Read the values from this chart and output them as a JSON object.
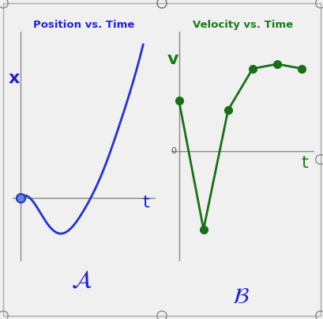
{
  "fig_width": 4.1,
  "fig_height": 4.03,
  "dpi": 100,
  "background_color": "#f0f0f0",
  "outer_border_color": "#aaaaaa",
  "grid_color": "#c8c8d8",
  "left_title": "Position vs. Time",
  "right_title": "Velocity vs. Time",
  "left_title_color": "#2222cc",
  "right_title_color": "#1a7a1a",
  "left_xlabel": "t",
  "left_ylabel": "x",
  "right_xlabel": "t",
  "right_ylabel": "v",
  "axis_label_color_left": "#2222cc",
  "axis_label_color_right": "#1a7a1a",
  "left_curve_color": "#2233cc",
  "right_line_color": "#1a6e1a",
  "label_A_color": "#2222cc",
  "label_B_color": "#2222cc",
  "pos_curve_x": [
    0,
    0.5,
    1.0,
    1.5,
    2.0,
    2.5,
    3.0,
    3.5,
    4.0,
    4.5,
    5.0
  ],
  "pos_curve_y": [
    0,
    -0.05,
    -0.35,
    -0.55,
    -0.5,
    -0.25,
    0.1,
    0.55,
    1.1,
    1.7,
    2.4
  ],
  "vel_points_x": [
    0,
    1,
    2,
    3,
    4,
    5
  ],
  "vel_points_y": [
    0.55,
    -0.85,
    0.45,
    0.9,
    0.95,
    0.9
  ],
  "ylim_left": [
    -1.0,
    2.6
  ],
  "xlim_left": [
    -0.3,
    5.5
  ],
  "ylim_right": [
    -1.2,
    1.3
  ],
  "xlim_right": [
    -0.3,
    5.5
  ],
  "zero_line_color": "#888888",
  "font_size_title": 9.5,
  "font_size_axis": 10,
  "font_size_label": 16
}
